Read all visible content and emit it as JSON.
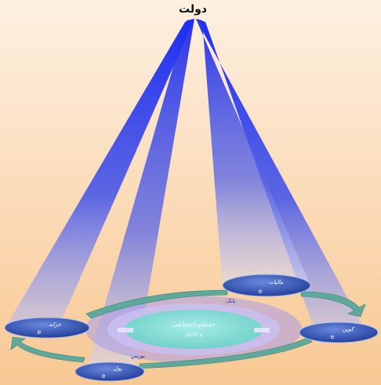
{
  "diagram": {
    "top_label": "دولت",
    "center": {
      "inner_text_line1": "خدمات اجتماعی",
      "inner_text_line2": "و اداری",
      "ring_label_top": "بانک",
      "ring_label_bottom": "بورس"
    },
    "nodes": [
      {
        "id": "right-top",
        "label": "مالیات"
      },
      {
        "id": "right",
        "label": "کوپن"
      },
      {
        "id": "bottom",
        "label": "پول"
      },
      {
        "id": "left",
        "label": "خزانه"
      }
    ],
    "node_icon_glyph": "e",
    "colors": {
      "beam": "#1f2be6",
      "ring": "#8d7be6",
      "core": "#86ddd7",
      "arrow": "#5aa79a",
      "node": "#2e4fae"
    }
  }
}
